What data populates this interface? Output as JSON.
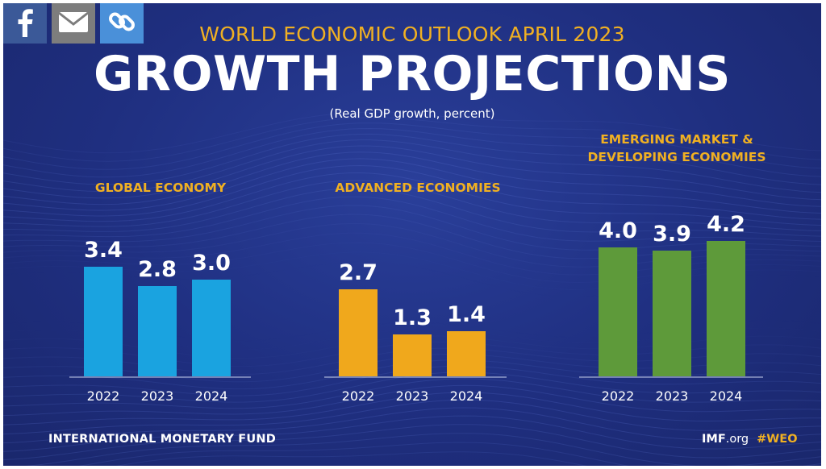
{
  "share": [
    {
      "name": "facebook-icon",
      "color": "#3b5998"
    },
    {
      "name": "email-icon",
      "color": "#7d7d7d"
    },
    {
      "name": "link-icon",
      "color": "#4a90d9"
    }
  ],
  "header": {
    "subtitle": "WORLD ECONOMIC OUTLOOK APRIL 2023",
    "title": "GROWTH PROJECTIONS",
    "units": "(Real GDP growth, percent)"
  },
  "footer": {
    "org": "INTERNATIONAL MONETARY FUND",
    "site_bold": "IMF",
    "site_rest": ".org",
    "hashtag": "#WEO"
  },
  "chart_data": [
    {
      "type": "bar",
      "title_lines": [
        "GLOBAL ECONOMY"
      ],
      "categories": [
        "2022",
        "2023",
        "2024"
      ],
      "values": [
        3.4,
        2.8,
        3.0
      ],
      "labels": [
        "3.4",
        "2.8",
        "3.0"
      ],
      "color": "#1aa3e0"
    },
    {
      "type": "bar",
      "title_lines": [
        "ADVANCED ECONOMIES"
      ],
      "categories": [
        "2022",
        "2023",
        "2024"
      ],
      "values": [
        2.7,
        1.3,
        1.4
      ],
      "labels": [
        "2.7",
        "1.3",
        "1.4"
      ],
      "color": "#f0a81c"
    },
    {
      "type": "bar",
      "title_lines": [
        "EMERGING MARKET &",
        "DEVELOPING ECONOMIES"
      ],
      "categories": [
        "2022",
        "2023",
        "2024"
      ],
      "values": [
        4.0,
        3.9,
        4.2
      ],
      "labels": [
        "4.0",
        "3.9",
        "4.2"
      ],
      "color": "#5e9a3a"
    }
  ]
}
